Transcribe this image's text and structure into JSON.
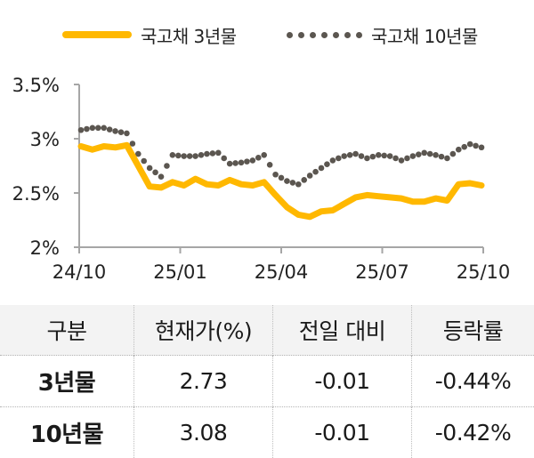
{
  "legend": [
    {
      "label": "국고채 3년물",
      "style": "solid-line",
      "color": "#FFB800"
    },
    {
      "label": "국고채 10년물",
      "style": "dotted",
      "color": "#5B5650"
    }
  ],
  "chart_data": {
    "type": "line",
    "title": "",
    "xlabel": "",
    "ylabel": "",
    "ylim": [
      2.0,
      3.5
    ],
    "y_ticks": [
      "3.5%",
      "3%",
      "2.5%",
      "2%"
    ],
    "y_tick_values": [
      3.5,
      3.0,
      2.5,
      2.0
    ],
    "x_ticks": [
      "24/10",
      "25/01",
      "25/04",
      "25/07",
      "25/10"
    ],
    "grid": false,
    "legend_position": "top",
    "x": [
      "24/10",
      "24/10",
      "24/11",
      "24/11",
      "24/11",
      "24/12",
      "24/12",
      "24/12",
      "25/01",
      "25/01",
      "25/01",
      "25/02",
      "25/02",
      "25/02",
      "25/03",
      "25/03",
      "25/03",
      "25/04",
      "25/04",
      "25/04",
      "25/05",
      "25/05",
      "25/05",
      "25/06",
      "25/06",
      "25/06",
      "25/07",
      "25/07",
      "25/07",
      "25/08",
      "25/08",
      "25/08",
      "25/09",
      "25/09",
      "25/09",
      "25/10"
    ],
    "series": [
      {
        "name": "국고채 3년물",
        "color": "#FFB800",
        "values": [
          2.93,
          2.9,
          2.93,
          2.92,
          2.94,
          2.75,
          2.56,
          2.55,
          2.6,
          2.57,
          2.63,
          2.58,
          2.57,
          2.62,
          2.58,
          2.57,
          2.6,
          2.48,
          2.37,
          2.3,
          2.28,
          2.33,
          2.34,
          2.4,
          2.46,
          2.48,
          2.47,
          2.46,
          2.45,
          2.42,
          2.42,
          2.45,
          2.43,
          2.58,
          2.59,
          2.57
        ]
      },
      {
        "name": "국고채 10년물",
        "color": "#5B5650",
        "values": [
          3.08,
          3.1,
          3.1,
          3.07,
          3.05,
          2.86,
          2.73,
          2.65,
          2.85,
          2.84,
          2.84,
          2.86,
          2.87,
          2.77,
          2.78,
          2.8,
          2.85,
          2.67,
          2.61,
          2.58,
          2.66,
          2.73,
          2.8,
          2.84,
          2.86,
          2.82,
          2.85,
          2.84,
          2.8,
          2.84,
          2.87,
          2.85,
          2.82,
          2.9,
          2.95,
          2.92
        ]
      }
    ]
  },
  "table": {
    "headers": [
      "구분",
      "현재가(%)",
      "전일 대비",
      "등락률"
    ],
    "rows": [
      {
        "name": "3년물",
        "price": "2.73",
        "change": "-0.01",
        "rate": "-0.44%"
      },
      {
        "name": "10년물",
        "price": "3.08",
        "change": "-0.01",
        "rate": "-0.42%"
      }
    ]
  }
}
